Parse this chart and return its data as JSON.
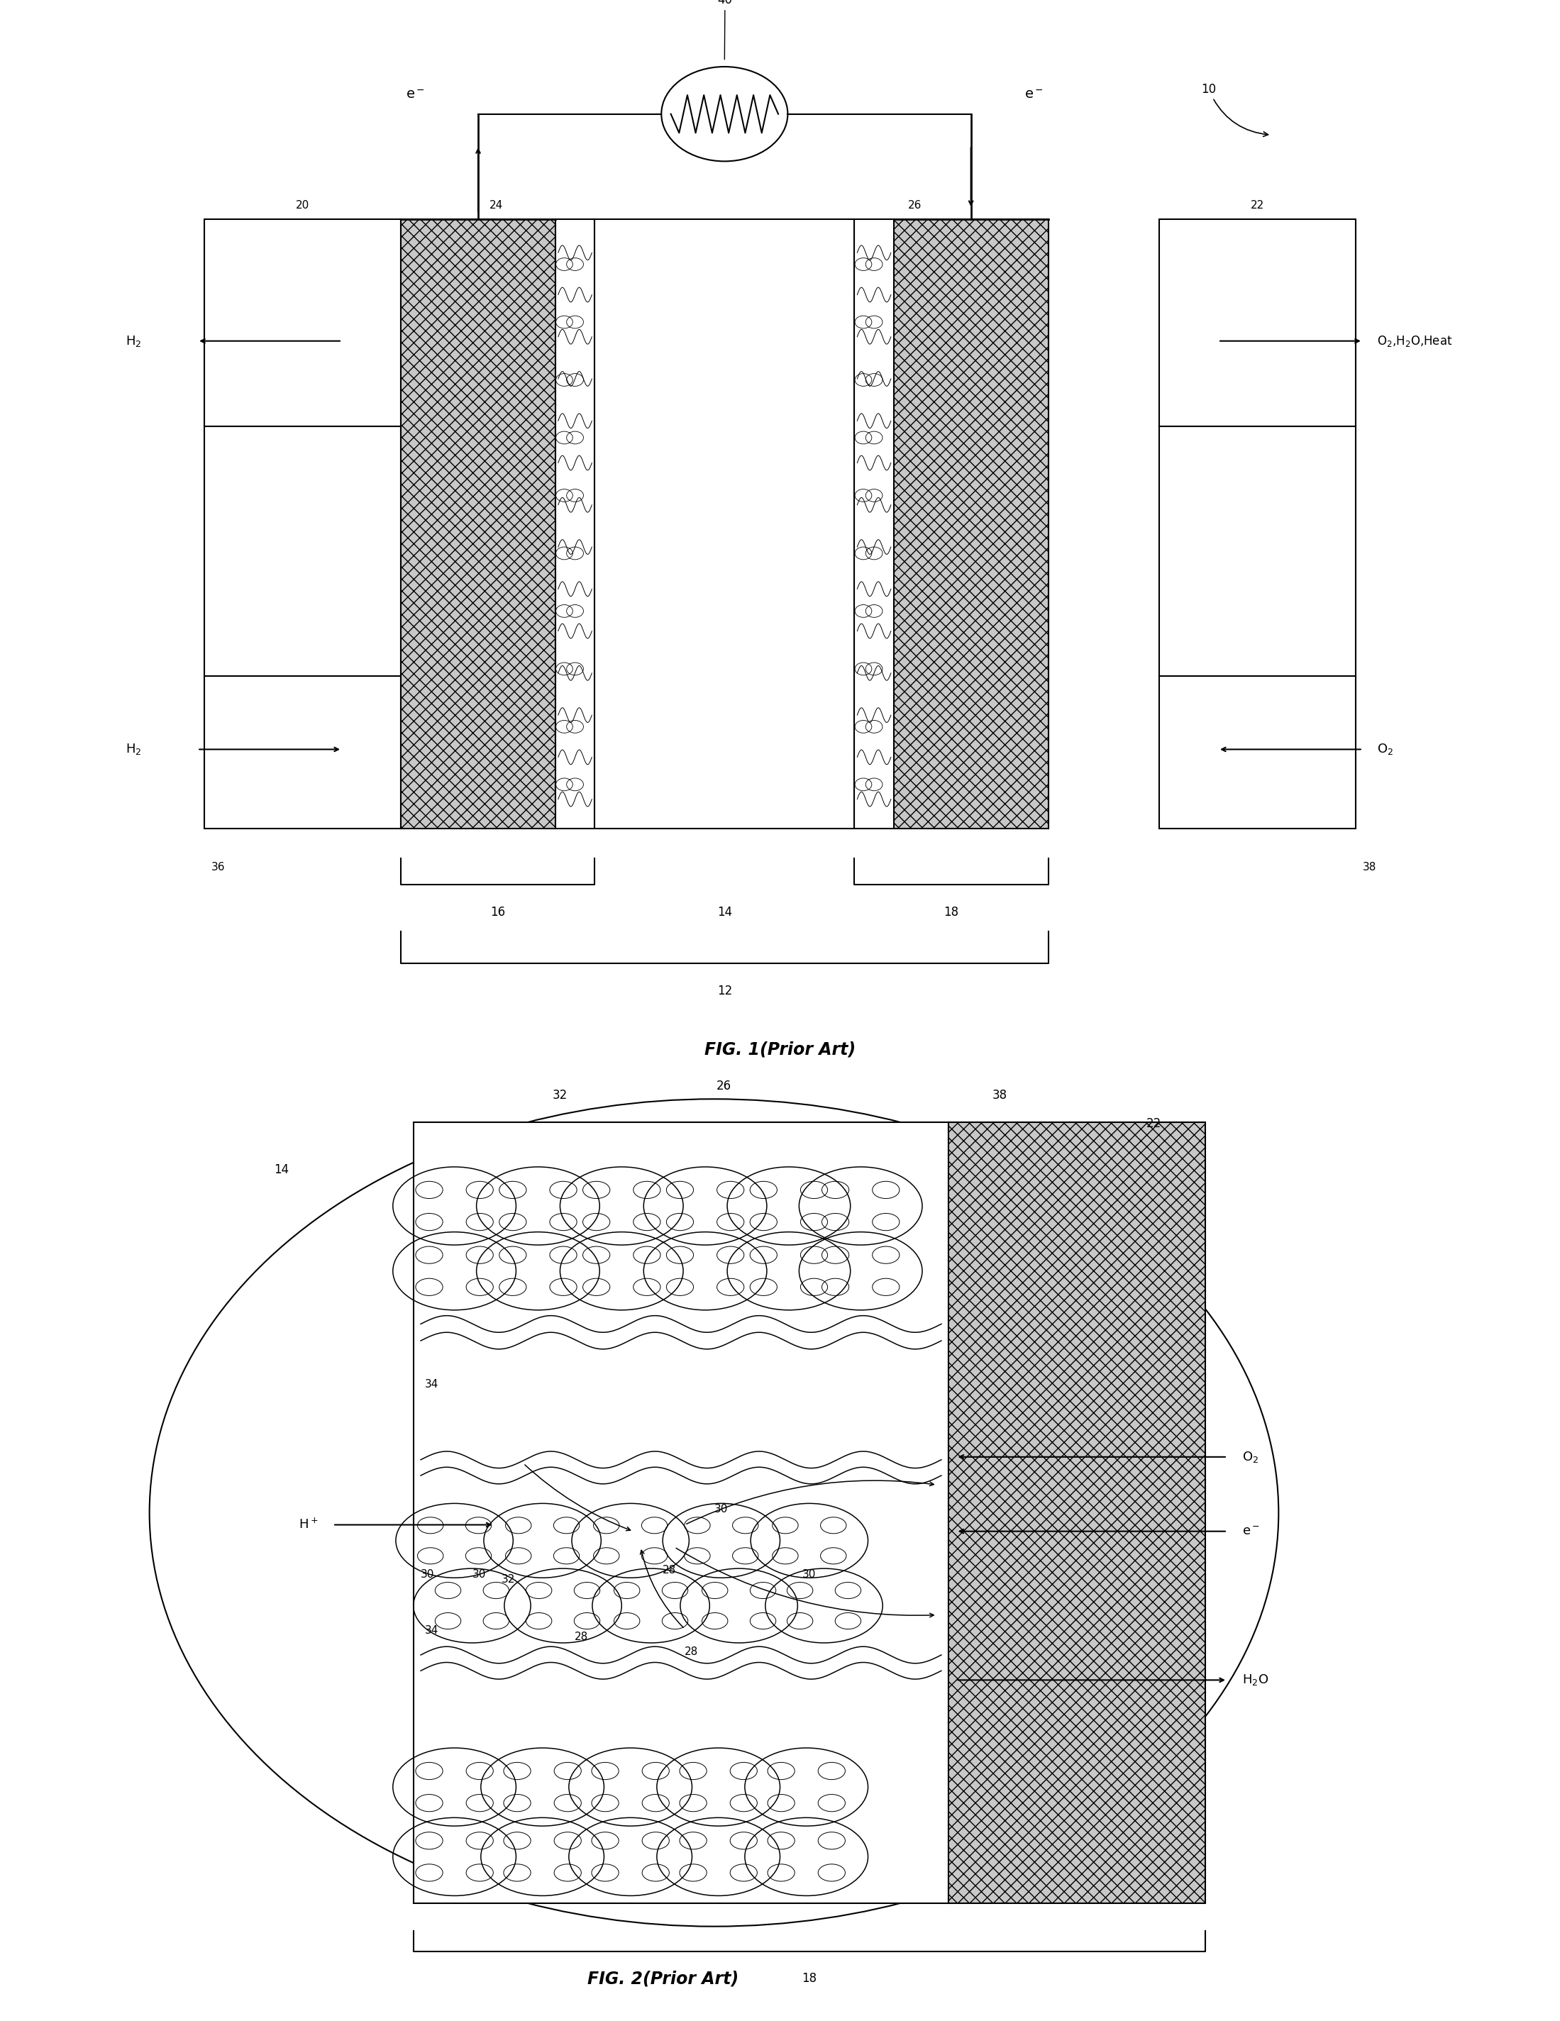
{
  "fig_width": 21.99,
  "fig_height": 28.49,
  "bg_color": "#ffffff",
  "fig1_title": "FIG. 1(Prior Art)",
  "fig2_title": "FIG. 2(Prior Art)",
  "lw": 1.5
}
